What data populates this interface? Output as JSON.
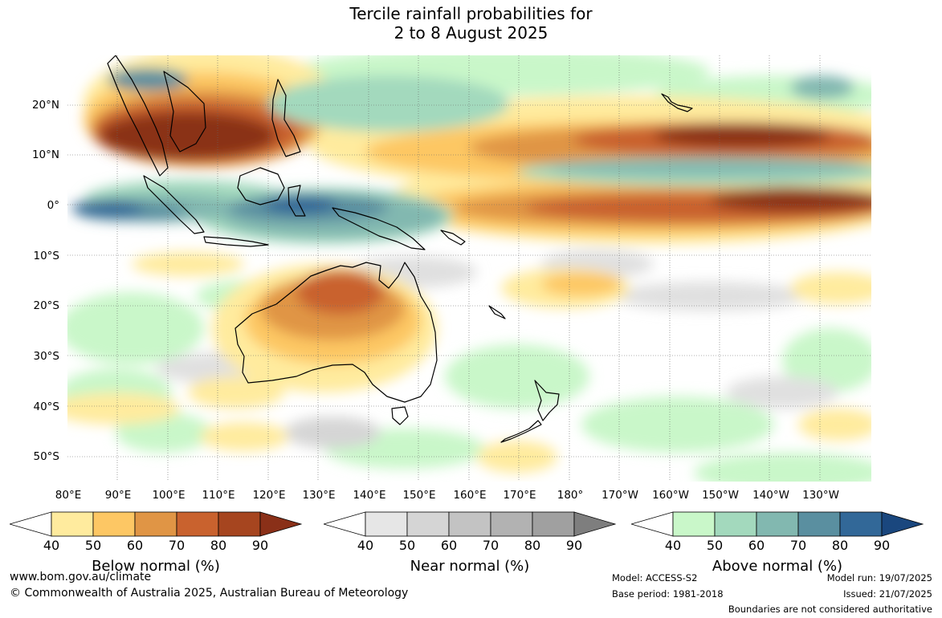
{
  "title_line1": "Tercile rainfall probabilities for",
  "title_line2": "2 to 8 August 2025",
  "lat_labels": [
    "20°N",
    "10°N",
    "0°",
    "10°S",
    "20°S",
    "30°S",
    "40°S",
    "50°S"
  ],
  "lon_labels": [
    "80°E",
    "90°E",
    "100°E",
    "110°E",
    "120°E",
    "130°E",
    "140°E",
    "150°E",
    "160°E",
    "170°E",
    "180°",
    "170°W",
    "160°W",
    "150°W",
    "140°W",
    "130°W"
  ],
  "colorbars": [
    {
      "label": "Below normal (%)",
      "ticks": [
        "40",
        "50",
        "60",
        "70",
        "80",
        "90"
      ],
      "colors": [
        "#ffffff",
        "#ffeb9e",
        "#fdc764",
        "#e09545",
        "#c9622e",
        "#a6451f",
        "#8a3018"
      ]
    },
    {
      "label": "Near normal (%)",
      "ticks": [
        "40",
        "50",
        "60",
        "70",
        "80",
        "90"
      ],
      "colors": [
        "#ffffff",
        "#e6e6e6",
        "#d5d5d5",
        "#c3c3c3",
        "#b2b2b2",
        "#a0a0a0",
        "#7e7e7e"
      ]
    },
    {
      "label": "Above normal (%)",
      "ticks": [
        "40",
        "50",
        "60",
        "70",
        "80",
        "90"
      ],
      "colors": [
        "#ffffff",
        "#c9f7c9",
        "#a3d9bd",
        "#82b8b0",
        "#5a8fa0",
        "#326898",
        "#1a477e"
      ]
    }
  ],
  "footer": {
    "website": "www.bom.gov.au/climate",
    "copyright": "© Commonwealth of Australia 2025, Australian Bureau of Meteorology",
    "model": "Model: ACCESS-S2",
    "base_period": "Base period: 1981-2018",
    "model_run": "Model run: 19/07/2025",
    "issued": "Issued: 21/07/2025",
    "disclaimer": "Boundaries are not considered authoritative"
  }
}
